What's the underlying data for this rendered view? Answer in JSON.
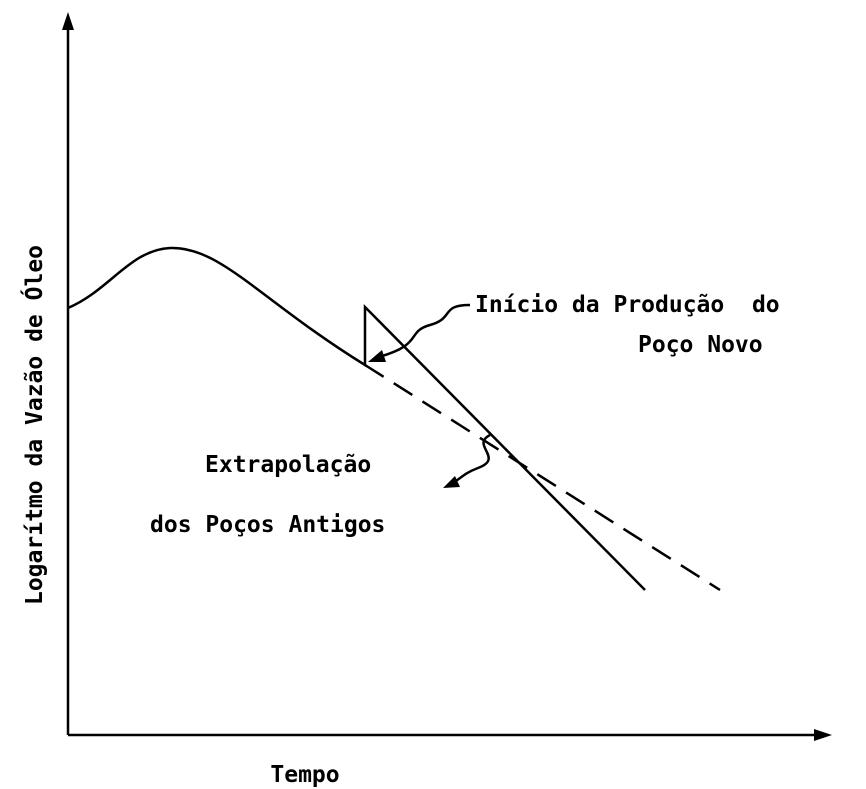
{
  "axes": {
    "y_label": "Logarítmo da Vazão de Óleo",
    "x_label": "Tempo"
  },
  "annotations": {
    "new_well_line1": "Início da Produção  do",
    "new_well_line2": "Poço Novo",
    "extrapolation_line1": "Extrapolação",
    "extrapolation_line2": "dos Poços Antigos"
  }
}
